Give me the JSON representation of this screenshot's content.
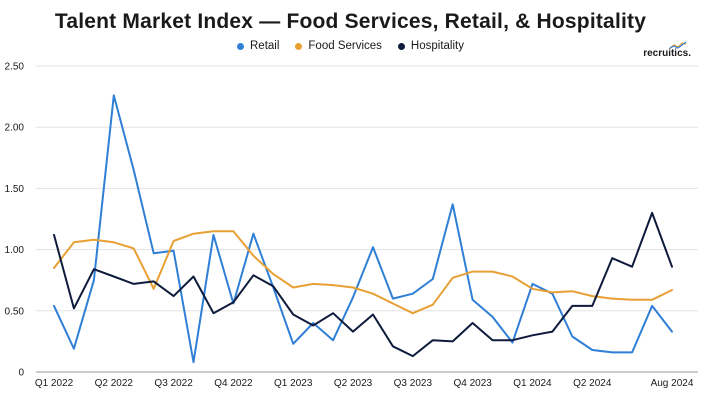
{
  "chart_data": {
    "type": "line",
    "title": "Talent Market Index — Food Services, Retail, & Hospitality",
    "brand": "recruitics.",
    "xlabel": "",
    "ylabel": "",
    "ylim": [
      0,
      2.5
    ],
    "yticks": [
      "0",
      "0.50",
      "1.00",
      "1.50",
      "2.00",
      "2.50"
    ],
    "ytick_values": [
      0,
      0.5,
      1.0,
      1.5,
      2.0,
      2.5
    ],
    "x_tick_labels": [
      {
        "index": 0,
        "label": "Q1 2022"
      },
      {
        "index": 3,
        "label": "Q2 2022"
      },
      {
        "index": 6,
        "label": "Q3 2022"
      },
      {
        "index": 9,
        "label": "Q4 2022"
      },
      {
        "index": 12,
        "label": "Q1 2023"
      },
      {
        "index": 15,
        "label": "Q2 2023"
      },
      {
        "index": 18,
        "label": "Q3 2023"
      },
      {
        "index": 21,
        "label": "Q4 2023"
      },
      {
        "index": 24,
        "label": "Q1 2024"
      },
      {
        "index": 27,
        "label": "Q2 2024"
      },
      {
        "index": 31,
        "label": "Aug 2024"
      }
    ],
    "grid": true,
    "legend_position": "top-center",
    "series": [
      {
        "name": "Retail",
        "color": "#2f7fd6",
        "values": [
          0.54,
          0.19,
          0.75,
          2.26,
          1.65,
          0.97,
          0.99,
          0.08,
          1.12,
          0.56,
          1.13,
          0.69,
          0.23,
          0.4,
          0.26,
          0.61,
          1.02,
          0.6,
          0.64,
          0.76,
          1.37,
          0.59,
          0.45,
          0.24,
          0.72,
          0.64,
          0.29,
          0.18,
          0.16,
          0.16,
          0.54,
          0.33
        ]
      },
      {
        "name": "Food Services",
        "color": "#e8a035",
        "values": [
          0.85,
          1.06,
          1.08,
          1.06,
          1.01,
          0.68,
          1.07,
          1.13,
          1.15,
          1.15,
          0.95,
          0.8,
          0.69,
          0.72,
          0.71,
          0.69,
          0.64,
          0.56,
          0.48,
          0.55,
          0.77,
          0.82,
          0.82,
          0.78,
          0.68,
          0.65,
          0.66,
          0.62,
          0.6,
          0.59,
          0.59,
          0.67
        ]
      },
      {
        "name": "Hospitality",
        "color": "#0f1b3d",
        "values": [
          1.12,
          0.52,
          0.84,
          0.78,
          0.72,
          0.74,
          0.62,
          0.78,
          0.48,
          0.57,
          0.79,
          0.7,
          0.47,
          0.38,
          0.48,
          0.33,
          0.47,
          0.21,
          0.13,
          0.26,
          0.25,
          0.4,
          0.26,
          0.26,
          0.3,
          0.33,
          0.54,
          0.54,
          0.93,
          0.86,
          1.3,
          0.86
        ]
      }
    ]
  }
}
